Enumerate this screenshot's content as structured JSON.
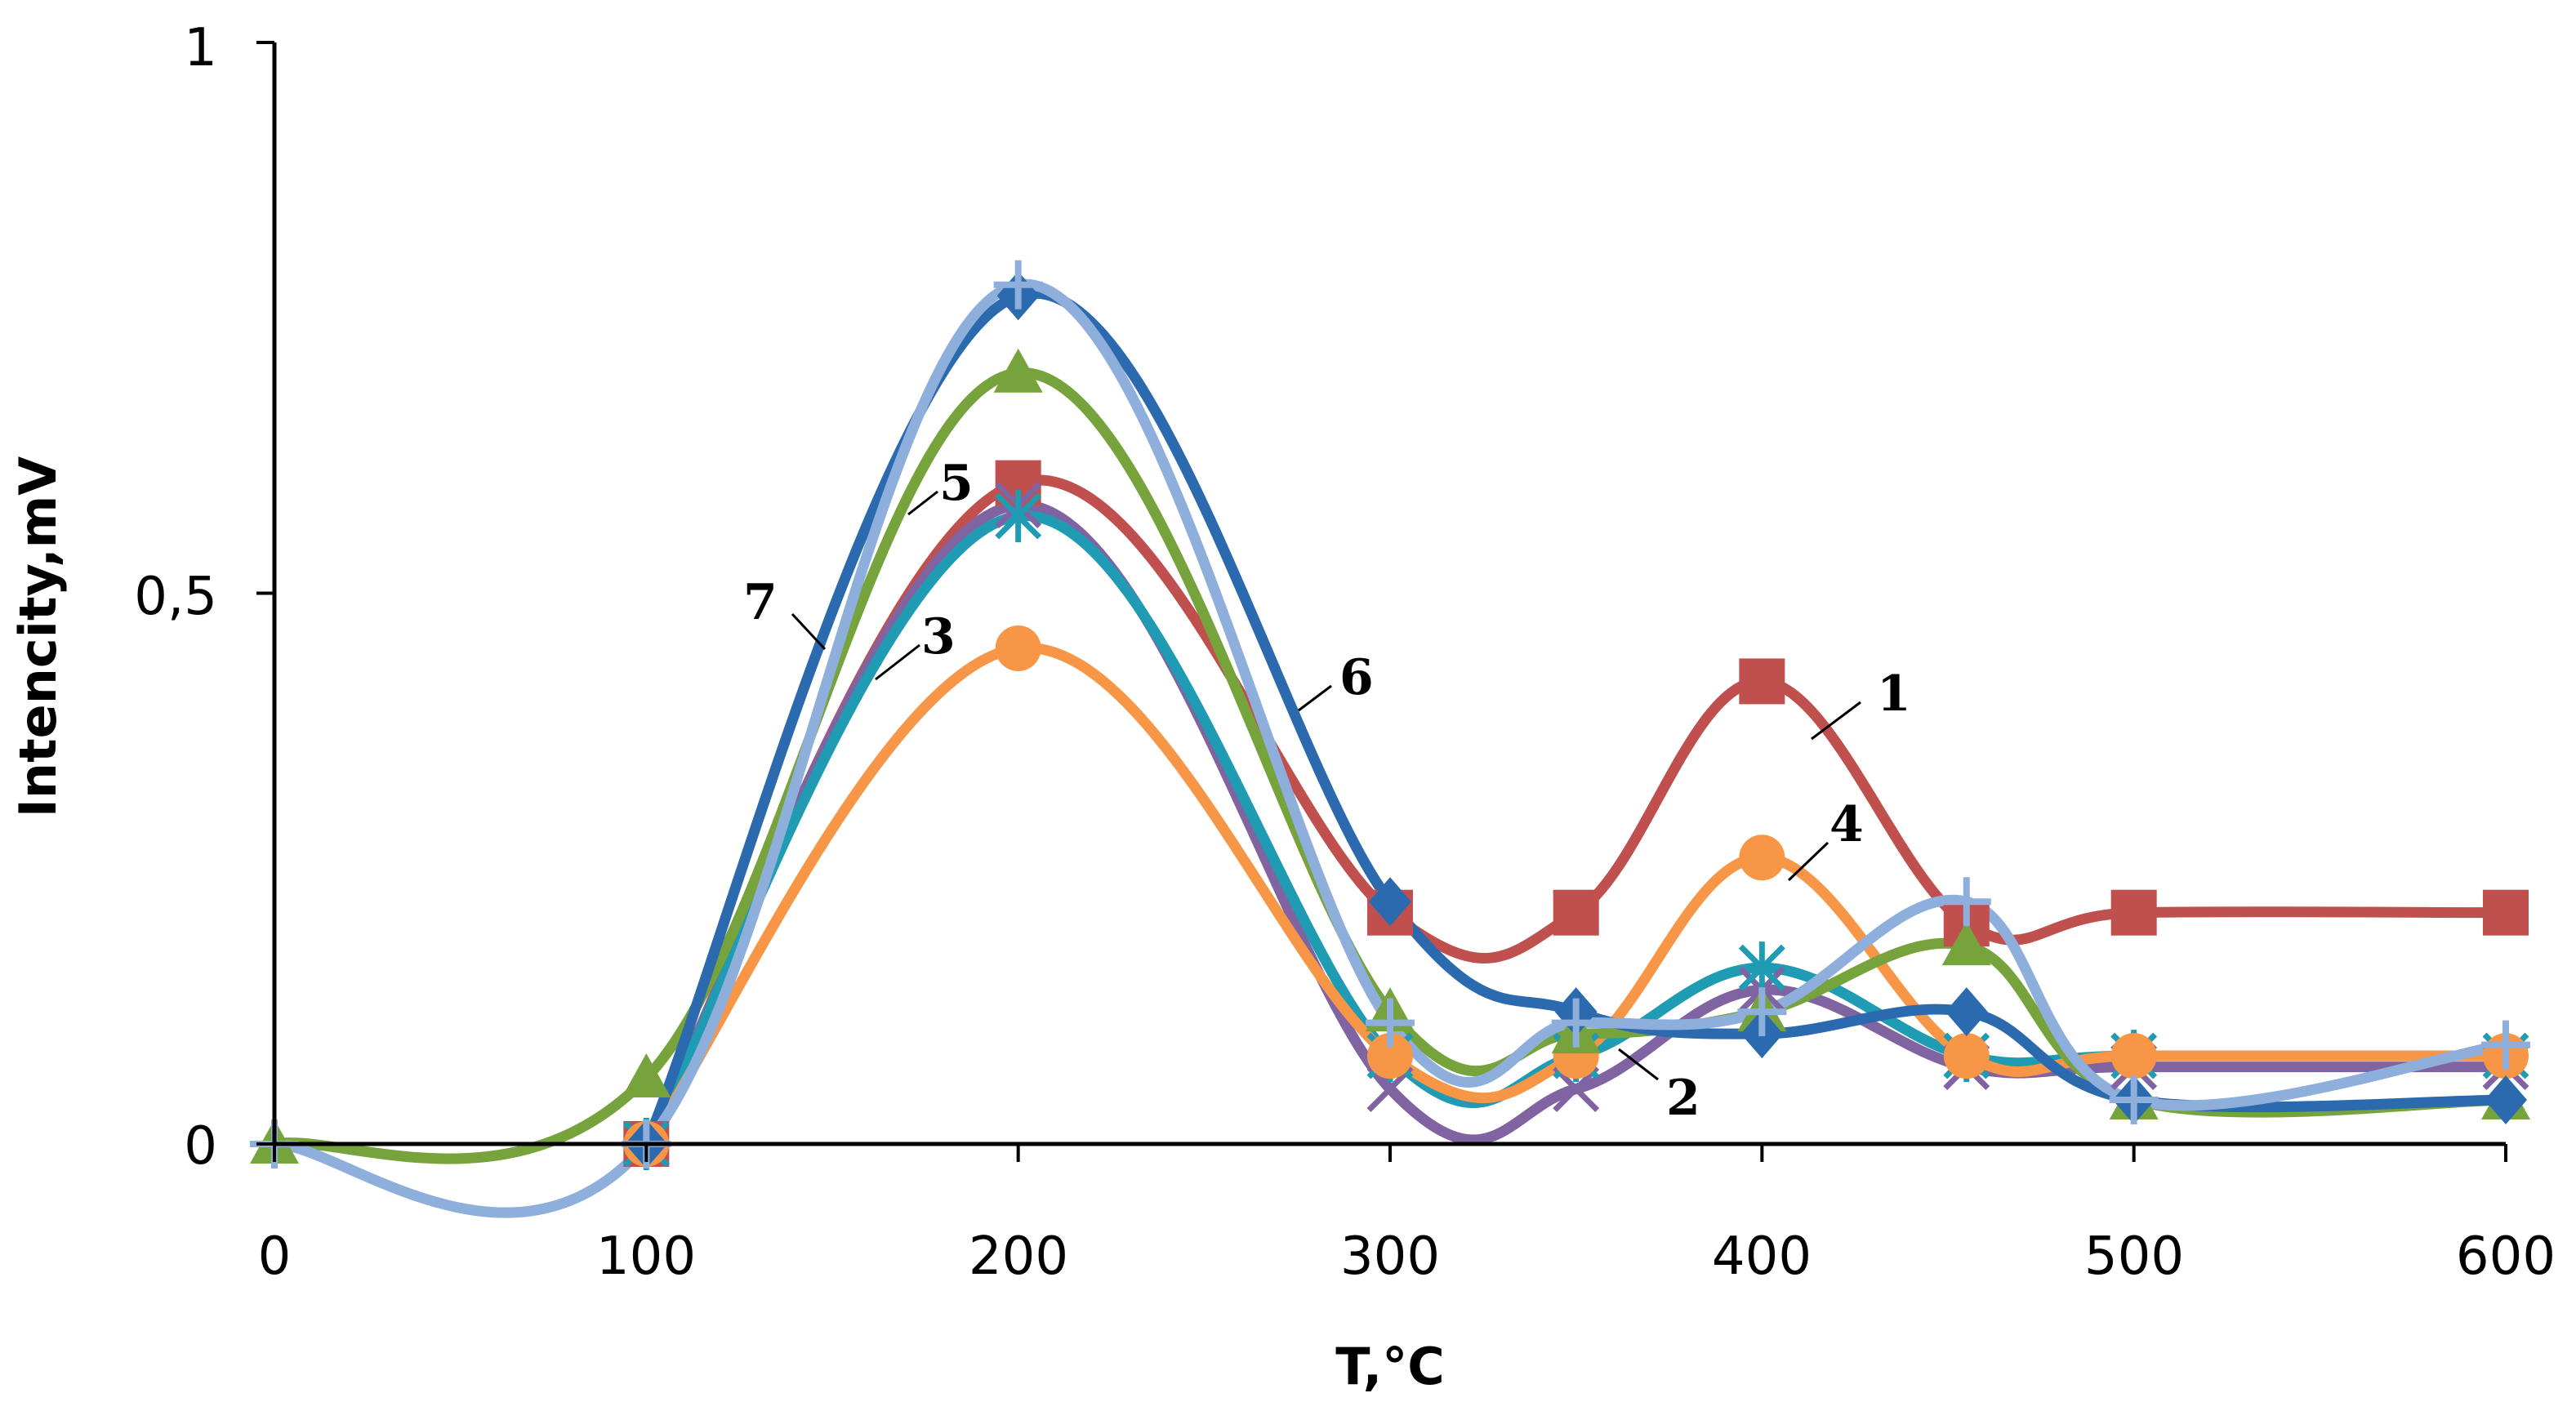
{
  "chart_data": {
    "type": "line",
    "title": "",
    "xlabel": "T,°C",
    "ylabel": "Intencity,mV",
    "xlim": [
      0,
      600
    ],
    "ylim": [
      0,
      1
    ],
    "x_ticks": [
      "0",
      "100",
      "200",
      "300",
      "400",
      "500",
      "600"
    ],
    "y_ticks": [
      "0",
      "0,5",
      "1"
    ],
    "grid": false,
    "legend": "none",
    "series": [
      {
        "name": "1",
        "color": "#C0504D",
        "marker": "square",
        "x": [
          100,
          200,
          300,
          350,
          400,
          455,
          500,
          600
        ],
        "y": [
          0.0,
          0.6,
          0.21,
          0.21,
          0.42,
          0.2,
          0.21,
          0.21
        ]
      },
      {
        "name": "2",
        "color": "#8064A2",
        "marker": "x",
        "x": [
          100,
          200,
          300,
          350,
          400,
          455,
          500,
          600
        ],
        "y": [
          0.0,
          0.58,
          0.05,
          0.05,
          0.14,
          0.07,
          0.07,
          0.07
        ]
      },
      {
        "name": "3",
        "color": "#1F9BB3",
        "marker": "asterisk",
        "x": [
          100,
          200,
          300,
          350,
          400,
          455,
          500,
          600
        ],
        "y": [
          0.0,
          0.57,
          0.08,
          0.08,
          0.16,
          0.08,
          0.08,
          0.08
        ]
      },
      {
        "name": "4",
        "color": "#F79646",
        "marker": "circle",
        "x": [
          100,
          200,
          300,
          350,
          400,
          455,
          500,
          600
        ],
        "y": [
          0.0,
          0.45,
          0.08,
          0.08,
          0.26,
          0.08,
          0.08,
          0.08
        ]
      },
      {
        "name": "5",
        "color": "#77A33C",
        "marker": "triangle",
        "x": [
          0,
          100,
          200,
          300,
          350,
          400,
          455,
          500,
          600
        ],
        "y": [
          0.0,
          0.06,
          0.7,
          0.12,
          0.1,
          0.12,
          0.18,
          0.04,
          0.04
        ]
      },
      {
        "name": "6",
        "color": "#2B6AAE",
        "marker": "diamond",
        "x": [
          100,
          200,
          300,
          350,
          400,
          455,
          500,
          600
        ],
        "y": [
          0.0,
          0.77,
          0.22,
          0.12,
          0.1,
          0.12,
          0.04,
          0.04
        ]
      },
      {
        "name": "7",
        "color": "#8EAEDB",
        "marker": "plus",
        "x": [
          0,
          100,
          200,
          300,
          350,
          400,
          455,
          500,
          600
        ],
        "y": [
          0.0,
          0.0,
          0.78,
          0.11,
          0.11,
          0.12,
          0.22,
          0.04,
          0.09
        ]
      }
    ],
    "annotations": [
      "1",
      "2",
      "3",
      "4",
      "5",
      "6",
      "7"
    ]
  }
}
